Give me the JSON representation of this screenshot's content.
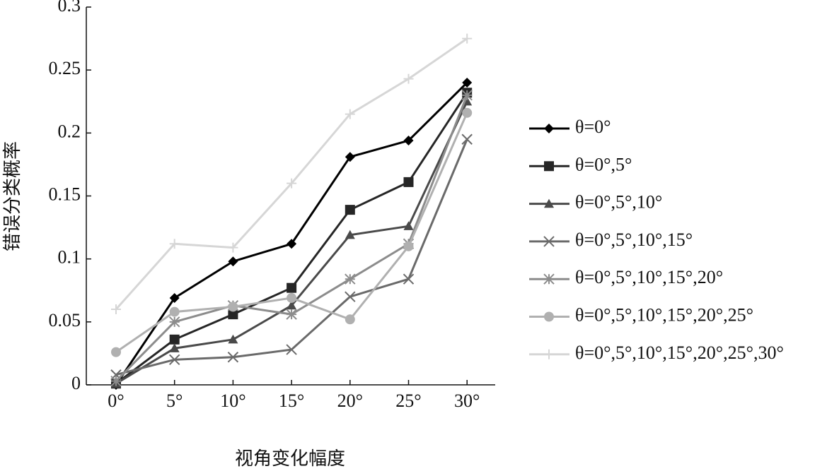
{
  "chart_data": {
    "type": "line",
    "x_label": "视角变化幅度",
    "y_label": "错误分类概率",
    "categories": [
      "0°",
      "5°",
      "10°",
      "15°",
      "20°",
      "25°",
      "30°"
    ],
    "ylim": [
      0,
      0.3
    ],
    "yticks": [
      0,
      0.05,
      0.1,
      0.15,
      0.2,
      0.25,
      0.3
    ],
    "legend": "right",
    "series": [
      {
        "name": "θ=0°",
        "color": "#000000",
        "marker": "diamond",
        "values": [
          0.0,
          0.069,
          0.098,
          0.112,
          0.181,
          0.194,
          0.24
        ]
      },
      {
        "name": "θ=0°,5°",
        "color": "#262626",
        "marker": "square",
        "values": [
          0.001,
          0.036,
          0.056,
          0.077,
          0.139,
          0.161,
          0.232
        ]
      },
      {
        "name": "θ=0°,5°,10°",
        "color": "#4a4a4a",
        "marker": "triangle",
        "values": [
          0.001,
          0.029,
          0.036,
          0.063,
          0.119,
          0.126,
          0.225
        ]
      },
      {
        "name": "θ=0°,5°,10°,15°",
        "color": "#6a6a6a",
        "marker": "x",
        "values": [
          0.008,
          0.02,
          0.022,
          0.028,
          0.07,
          0.084,
          0.195
        ]
      },
      {
        "name": "θ=0°,5°,10°,15°,20°",
        "color": "#8c8c8c",
        "marker": "asterisk",
        "values": [
          0.003,
          0.05,
          0.063,
          0.056,
          0.084,
          0.112,
          0.23
        ]
      },
      {
        "name": "θ=0°,5°,10°,15°,20°,25°",
        "color": "#b0b0b0",
        "marker": "circle",
        "values": [
          0.026,
          0.058,
          0.062,
          0.069,
          0.052,
          0.11,
          0.216
        ]
      },
      {
        "name": "θ=0°,5°,10°,15°,20°,25°,30°",
        "color": "#d6d6d6",
        "marker": "plus",
        "values": [
          0.06,
          0.112,
          0.109,
          0.16,
          0.215,
          0.243,
          0.275
        ]
      }
    ]
  }
}
